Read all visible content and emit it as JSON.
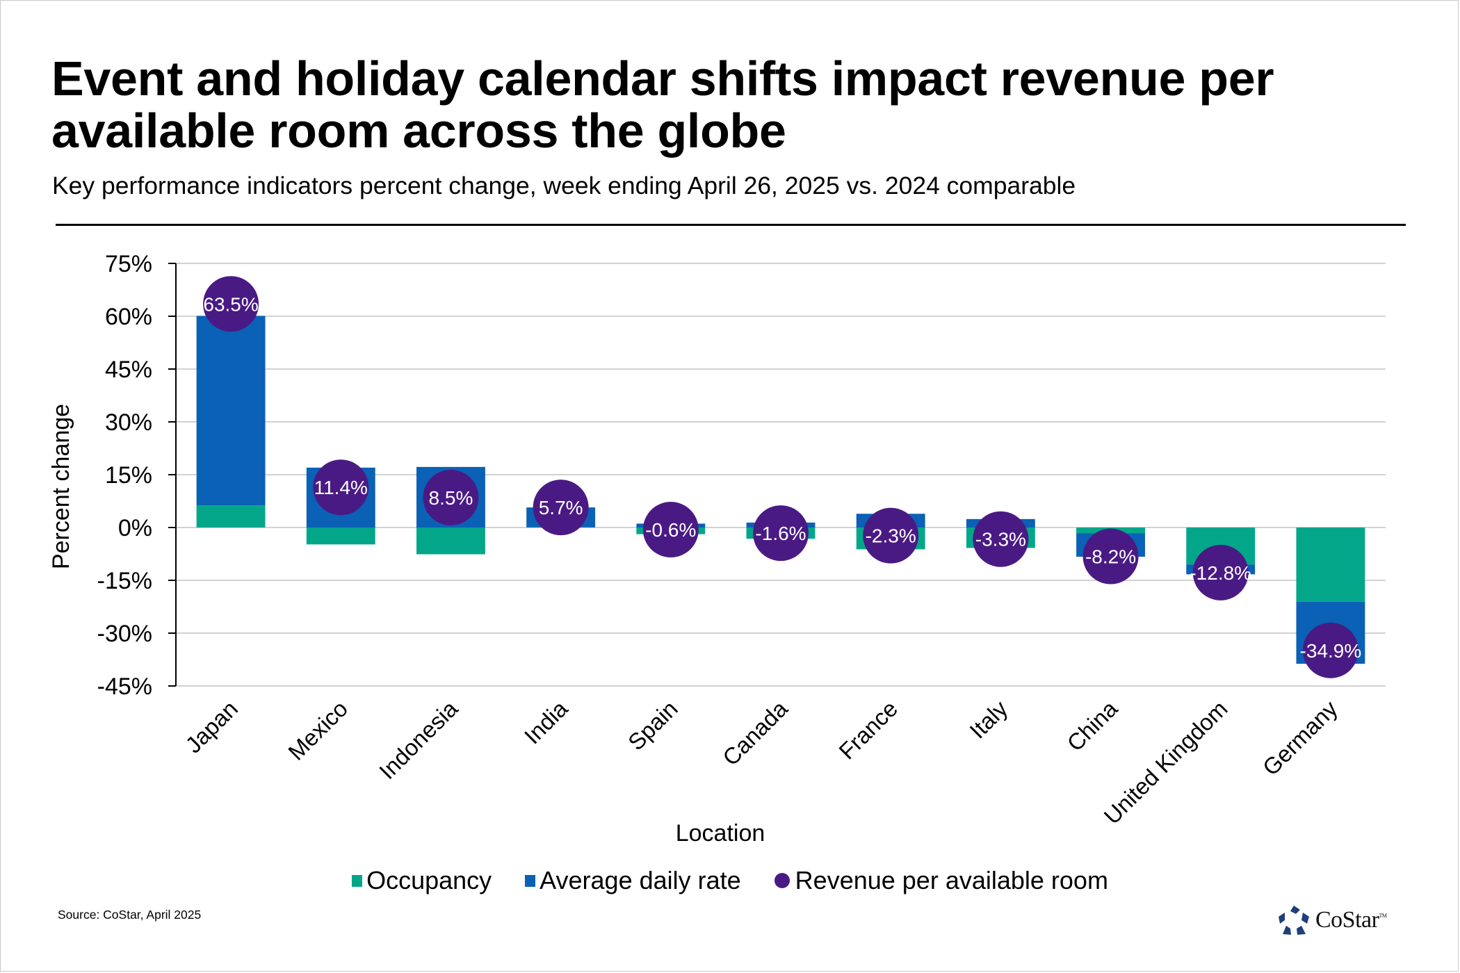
{
  "header": {
    "title": "Event and holiday calendar shifts impact revenue per available room across the globe",
    "subtitle": "Key performance indicators percent change, week ending April 26, 2025 vs. 2024 comparable"
  },
  "footer": {
    "source": "Source: CoStar, April 2025",
    "logo_text": "CoStar",
    "logo_tm": "TM"
  },
  "colors": {
    "occupancy": "#04A68A",
    "adr": "#0A61B5",
    "revpar": "#4A1A84",
    "grid": "#C4C4C4",
    "logo": "#1E3F7A"
  },
  "chart_data": {
    "type": "bar",
    "stacked": true,
    "title": "Event and holiday calendar shifts impact revenue per available room across the globe",
    "subtitle": "Key performance indicators percent change, week ending April 26, 2025 vs. 2024 comparable",
    "xlabel": "Location",
    "ylabel": "Percent change",
    "ylim": [
      -45,
      75
    ],
    "yticks": [
      75,
      60,
      45,
      30,
      15,
      0,
      -15,
      -30,
      -45
    ],
    "ytick_labels": [
      "75%",
      "60%",
      "45%",
      "30%",
      "15%",
      "0%",
      "-15%",
      "-30%",
      "-45%"
    ],
    "grid": true,
    "legend_position": "bottom",
    "categories": [
      "Japan",
      "Mexico",
      "Indonesia",
      "India",
      "Spain",
      "Canada",
      "France",
      "Italy",
      "China",
      "United Kingdom",
      "Germany"
    ],
    "series": [
      {
        "name": "Occupancy",
        "kind": "bar",
        "values": [
          6.3,
          -4.8,
          -7.6,
          0.1,
          -1.9,
          -3.2,
          -6.2,
          -5.8,
          -1.6,
          -10.5,
          -21.1
        ]
      },
      {
        "name": "Average daily rate",
        "kind": "bar",
        "values": [
          53.8,
          17.0,
          17.2,
          5.6,
          1.1,
          1.4,
          3.9,
          2.4,
          -6.7,
          -2.8,
          -17.6
        ]
      },
      {
        "name": "Revenue per available room",
        "kind": "marker",
        "values": [
          63.5,
          11.4,
          8.5,
          5.7,
          -0.6,
          -1.6,
          -2.3,
          -3.3,
          -8.2,
          -12.8,
          -34.9
        ],
        "labels": [
          "63.5%",
          "11.4%",
          "8.5%",
          "5.7%",
          "-0.6%",
          "-1.6%",
          "-2.3%",
          "-3.3%",
          "-8.2%",
          "-12.8%",
          "-34.9%"
        ]
      }
    ]
  }
}
